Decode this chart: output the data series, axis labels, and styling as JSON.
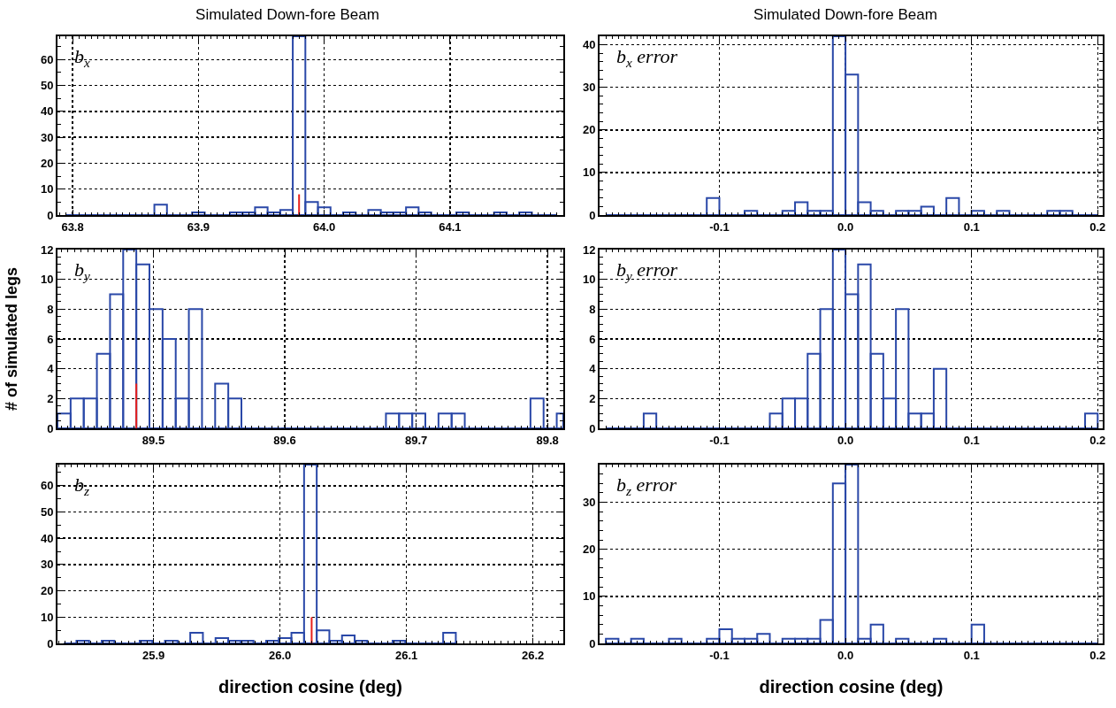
{
  "chart_data": [
    {
      "type": "histogram",
      "title": "Simulated Down-fore Beam",
      "color": "#2a48a8",
      "annotations": [
        "b$_{x}$"
      ],
      "bins": [
        63.795,
        63.805,
        63.815,
        63.825,
        63.835,
        63.845,
        63.855,
        63.865,
        63.875,
        63.885,
        63.895,
        63.905,
        63.915,
        63.925,
        63.935,
        63.945,
        63.955,
        63.965,
        63.975,
        63.985,
        63.995,
        64.005,
        64.015,
        64.025,
        64.035,
        64.045,
        64.055,
        64.065,
        64.075,
        64.085,
        64.095,
        64.105,
        64.115,
        64.125,
        64.135,
        64.145,
        64.155,
        64.165,
        64.175,
        64.185
      ],
      "values": [
        0,
        0,
        0,
        0,
        0,
        0,
        0,
        4,
        0,
        0,
        1,
        0,
        0,
        1,
        1,
        3,
        1,
        2,
        69,
        5,
        3,
        0,
        1,
        0,
        2,
        1,
        1,
        3,
        1,
        0,
        0,
        1,
        0,
        0,
        1,
        0,
        1,
        0,
        0
      ],
      "series": [
        {
          "type": "line",
          "color": "#e8201c",
          "x": [
            63.98,
            63.98
          ],
          "values": [
            0,
            8
          ]
        }
      ],
      "xlim": [
        63.788,
        64.19
      ],
      "xticks": [
        63.8,
        63.9,
        {
          "value": 64,
          "label": "64.0"
        },
        64.1
      ],
      "ylim": [
        0,
        69
      ],
      "yticks": [
        0,
        10,
        20,
        30,
        40,
        50,
        60
      ],
      "grid": true,
      "marker": "none"
    },
    {
      "type": "histogram",
      "title": "Simulated Down-fore Beam",
      "color": "#2a48a8",
      "annotations": [
        "b$_{x}$ error"
      ],
      "bins": [
        -0.19,
        -0.18,
        -0.17,
        -0.16,
        -0.15,
        -0.14,
        -0.13,
        -0.12,
        -0.11,
        -0.1,
        -0.09,
        -0.08,
        -0.07,
        -0.06,
        -0.05,
        -0.04,
        -0.03,
        -0.02,
        -0.01,
        0,
        0.01,
        0.02,
        0.03,
        0.04,
        0.05,
        0.06,
        0.07,
        0.08,
        0.09,
        0.1,
        0.11,
        0.12,
        0.13,
        0.14,
        0.15,
        0.16,
        0.17,
        0.18,
        0.19,
        0.2
      ],
      "values": [
        0,
        0,
        0,
        0,
        0,
        0,
        0,
        0,
        4,
        0,
        0,
        1,
        0,
        0,
        1,
        3,
        1,
        1,
        42,
        33,
        3,
        1,
        0,
        1,
        1,
        2,
        0,
        4,
        0,
        1,
        0,
        1,
        0,
        0,
        0,
        1,
        1,
        0,
        0
      ],
      "xlim": [
        -0.195,
        0.204
      ],
      "xticks": [
        -0.1,
        {
          "value": 0,
          "label": "0.0"
        },
        0.1,
        0.2
      ],
      "ylim": [
        0,
        42
      ],
      "yticks": [
        0,
        10,
        20,
        30,
        40
      ],
      "grid": true
    },
    {
      "type": "histogram",
      "ylabel": "# of simulated legs",
      "color": "#2a48a8",
      "annotations": [
        "b$_{y}$"
      ],
      "bins": [
        89.427,
        89.437,
        89.447,
        89.457,
        89.467,
        89.477,
        89.487,
        89.497,
        89.507,
        89.517,
        89.527,
        89.537,
        89.547,
        89.557,
        89.567,
        89.577,
        89.587,
        89.597,
        89.607,
        89.617,
        89.627,
        89.637,
        89.647,
        89.657,
        89.667,
        89.677,
        89.687,
        89.697,
        89.707,
        89.717,
        89.727,
        89.737,
        89.747,
        89.757,
        89.767,
        89.777,
        89.787,
        89.797,
        89.807,
        89.812
      ],
      "values": [
        1,
        2,
        2,
        5,
        9,
        12,
        11,
        8,
        6,
        2,
        8,
        0,
        3,
        2,
        0,
        0,
        0,
        0,
        0,
        0,
        0,
        0,
        0,
        0,
        0,
        1,
        1,
        1,
        0,
        1,
        1,
        0,
        0,
        0,
        0,
        0,
        2,
        0,
        1
      ],
      "series": [
        {
          "type": "line",
          "color": "#e8201c",
          "x": [
            89.487,
            89.487
          ],
          "values": [
            0,
            3
          ]
        }
      ],
      "xlim": [
        89.427,
        89.812
      ],
      "xticks": [
        89.5,
        89.6,
        89.7,
        89.8
      ],
      "ylim": [
        0,
        12
      ],
      "yticks": [
        0,
        2,
        4,
        6,
        8,
        10,
        12
      ],
      "grid": true
    },
    {
      "type": "histogram",
      "color": "#2a48a8",
      "annotations": [
        "b$_{y}$ error"
      ],
      "bins": [
        -0.19,
        -0.18,
        -0.17,
        -0.16,
        -0.15,
        -0.14,
        -0.13,
        -0.12,
        -0.11,
        -0.1,
        -0.09,
        -0.08,
        -0.07,
        -0.06,
        -0.05,
        -0.04,
        -0.03,
        -0.02,
        -0.01,
        0,
        0.01,
        0.02,
        0.03,
        0.04,
        0.05,
        0.06,
        0.07,
        0.08,
        0.09,
        0.1,
        0.11,
        0.12,
        0.13,
        0.14,
        0.15,
        0.16,
        0.17,
        0.18,
        0.19,
        0.2
      ],
      "values": [
        0,
        0,
        0,
        1,
        0,
        0,
        0,
        0,
        0,
        0,
        0,
        0,
        0,
        1,
        2,
        2,
        5,
        8,
        12,
        9,
        11,
        5,
        2,
        8,
        1,
        1,
        4,
        0,
        0,
        0,
        0,
        0,
        0,
        0,
        0,
        0,
        0,
        0,
        1
      ],
      "xlim": [
        -0.195,
        0.204
      ],
      "xticks": [
        -0.1,
        {
          "value": 0,
          "label": "0.0"
        },
        0.1,
        0.2
      ],
      "ylim": [
        0,
        12
      ],
      "yticks": [
        0,
        2,
        4,
        6,
        8,
        10,
        12
      ],
      "grid": true
    },
    {
      "type": "histogram",
      "xlabel": "direction cosine (deg)",
      "color": "#2a48a8",
      "annotations": [
        "b$_{z}$"
      ],
      "bins": [
        25.829,
        25.839,
        25.849,
        25.859,
        25.869,
        25.879,
        25.889,
        25.899,
        25.909,
        25.919,
        25.929,
        25.939,
        25.949,
        25.959,
        25.969,
        25.979,
        25.989,
        25.999,
        26.009,
        26.019,
        26.029,
        26.039,
        26.049,
        26.059,
        26.069,
        26.079,
        26.089,
        26.099,
        26.109,
        26.119,
        26.129,
        26.139
      ],
      "values": [
        0,
        1,
        0,
        1,
        0,
        0,
        1,
        0,
        1,
        0,
        4,
        0,
        2,
        1,
        1,
        0,
        1,
        2,
        4,
        68,
        5,
        1,
        3,
        1,
        0,
        0,
        1,
        0,
        0,
        0,
        4
      ],
      "series": [
        {
          "type": "line",
          "color": "#e8201c",
          "x": [
            26.025,
            26.025
          ],
          "values": [
            0,
            10
          ]
        }
      ],
      "xlim": [
        25.824,
        26.224
      ],
      "xticks": [
        25.9,
        {
          "value": 26,
          "label": "26.0"
        },
        26.1,
        26.2
      ],
      "ylim": [
        0,
        68
      ],
      "yticks": [
        0,
        10,
        20,
        30,
        40,
        50,
        60
      ],
      "grid": true
    },
    {
      "type": "histogram",
      "xlabel": "direction cosine (deg)",
      "color": "#2a48a8",
      "annotations": [
        "b$_{z}$ error"
      ],
      "bins": [
        -0.19,
        -0.18,
        -0.17,
        -0.16,
        -0.15,
        -0.14,
        -0.13,
        -0.12,
        -0.11,
        -0.1,
        -0.09,
        -0.08,
        -0.07,
        -0.06,
        -0.05,
        -0.04,
        -0.03,
        -0.02,
        -0.01,
        0,
        0.01,
        0.02,
        0.03,
        0.04,
        0.05,
        0.06,
        0.07,
        0.08,
        0.09,
        0.1,
        0.11,
        0.12,
        0.13,
        0.14,
        0.15,
        0.16,
        0.17,
        0.18,
        0.19,
        0.2
      ],
      "values": [
        1,
        0,
        1,
        0,
        0,
        1,
        0,
        0,
        1,
        3,
        1,
        1,
        2,
        0,
        1,
        1,
        1,
        5,
        34,
        38,
        1,
        4,
        0,
        1,
        0,
        0,
        1,
        0,
        0,
        4,
        0,
        0,
        0,
        0,
        0,
        0,
        0,
        0,
        0
      ],
      "xlim": [
        -0.195,
        0.204
      ],
      "xticks": [
        -0.1,
        {
          "value": 0,
          "label": "0.0"
        },
        0.1,
        0.2
      ],
      "ylim": [
        0,
        38
      ],
      "yticks": [
        0,
        10,
        20,
        30
      ],
      "grid": true
    }
  ]
}
